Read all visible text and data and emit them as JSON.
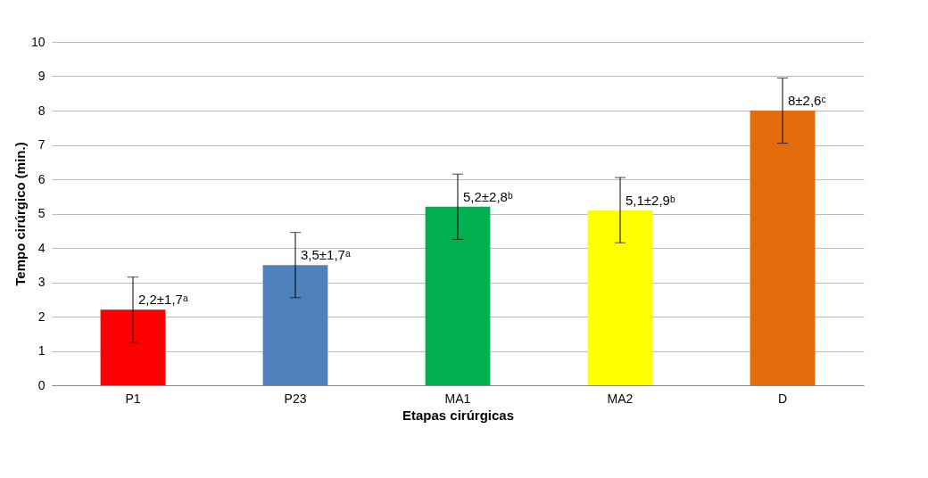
{
  "chart_data": {
    "type": "bar",
    "xlabel": "Etapas cirúrgicas",
    "ylabel": "Tempo cirúrgico  (min.)",
    "categories": [
      "P1",
      "P23",
      "MA1",
      "MA2",
      "D"
    ],
    "values": [
      2.2,
      3.5,
      5.2,
      5.1,
      8
    ],
    "colors": [
      "#ff0000",
      "#4f81bd",
      "#00b050",
      "#ffff00",
      "#e46c0a"
    ],
    "errors": [
      0.95,
      0.95,
      0.95,
      0.95,
      0.95
    ],
    "value_labels": [
      "2,2±1,7ᵃ",
      "3,5±1,7ᵃ",
      "5,2±2,8ᵇ",
      "5,1±2,9ᵇ",
      "8±2,6ᶜ"
    ],
    "ylim": [
      0,
      10
    ],
    "yticks": [
      0,
      1,
      2,
      3,
      4,
      5,
      6,
      7,
      8,
      9,
      10
    ],
    "grid": "y"
  }
}
